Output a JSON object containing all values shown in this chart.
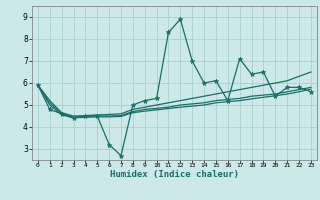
{
  "title": "",
  "xlabel": "Humidex (Indice chaleur)",
  "bg_color": "#cce8e8",
  "grid_color": "#aacece",
  "line_color": "#1a6e6a",
  "marker_color": "#1a6e6a",
  "xlim": [
    -0.5,
    23.5
  ],
  "ylim": [
    2.5,
    9.5
  ],
  "yticks": [
    3,
    4,
    5,
    6,
    7,
    8,
    9
  ],
  "xticks": [
    0,
    1,
    2,
    3,
    4,
    5,
    6,
    7,
    8,
    9,
    10,
    11,
    12,
    13,
    14,
    15,
    16,
    17,
    18,
    19,
    20,
    21,
    22,
    23
  ],
  "lines": [
    {
      "x": [
        0,
        1,
        2,
        3,
        4,
        5,
        6,
        7,
        8,
        9,
        10,
        11,
        12,
        13,
        14,
        15,
        16,
        17,
        18,
        19,
        20,
        21,
        22,
        23
      ],
      "y": [
        5.9,
        4.8,
        4.6,
        4.4,
        4.5,
        4.5,
        3.2,
        2.7,
        5.0,
        5.2,
        5.3,
        8.3,
        8.9,
        7.0,
        6.0,
        6.1,
        5.2,
        7.1,
        6.4,
        6.5,
        5.4,
        5.8,
        5.8,
        5.6
      ],
      "marker": true
    },
    {
      "x": [
        0,
        1,
        2,
        3,
        4,
        5,
        6,
        7,
        8,
        9,
        10,
        11,
        12,
        13,
        14,
        15,
        16,
        17,
        18,
        19,
        20,
        21,
        22,
        23
      ],
      "y": [
        5.9,
        5.2,
        4.65,
        4.5,
        4.52,
        4.55,
        4.57,
        4.6,
        4.8,
        4.9,
        5.0,
        5.1,
        5.2,
        5.3,
        5.4,
        5.5,
        5.6,
        5.7,
        5.8,
        5.9,
        6.0,
        6.1,
        6.3,
        6.5
      ],
      "marker": false
    },
    {
      "x": [
        0,
        1,
        2,
        3,
        4,
        5,
        6,
        7,
        8,
        9,
        10,
        11,
        12,
        13,
        14,
        15,
        16,
        17,
        18,
        19,
        20,
        21,
        22,
        23
      ],
      "y": [
        5.9,
        5.1,
        4.6,
        4.45,
        4.48,
        4.5,
        4.5,
        4.52,
        4.7,
        4.8,
        4.85,
        4.9,
        5.0,
        5.05,
        5.1,
        5.2,
        5.25,
        5.3,
        5.4,
        5.45,
        5.5,
        5.6,
        5.7,
        5.8
      ],
      "marker": false
    },
    {
      "x": [
        0,
        1,
        2,
        3,
        4,
        5,
        6,
        7,
        8,
        9,
        10,
        11,
        12,
        13,
        14,
        15,
        16,
        17,
        18,
        19,
        20,
        21,
        22,
        23
      ],
      "y": [
        5.9,
        5.0,
        4.55,
        4.42,
        4.44,
        4.46,
        4.46,
        4.48,
        4.65,
        4.72,
        4.78,
        4.84,
        4.9,
        4.95,
        5.0,
        5.1,
        5.15,
        5.2,
        5.28,
        5.35,
        5.42,
        5.5,
        5.6,
        5.72
      ],
      "marker": false
    }
  ]
}
